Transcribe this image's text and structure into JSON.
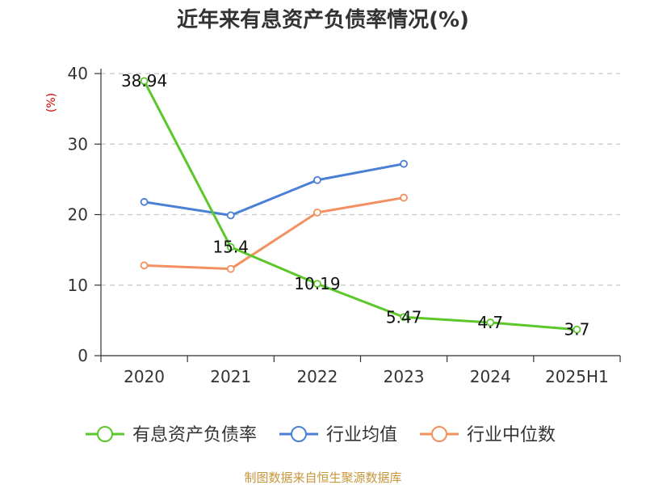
{
  "chart_data": {
    "type": "line",
    "title": "近年来有息资产负债率情况(%)",
    "ylabel": "(%)",
    "xlabel": "",
    "categories": [
      "2020",
      "2021",
      "2022",
      "2023",
      "2024",
      "2025H1"
    ],
    "ylim": [
      0,
      40
    ],
    "yticks": [
      0,
      10,
      20,
      30,
      40
    ],
    "grid": true,
    "legend_position": "bottom",
    "series": [
      {
        "name": "有息资产负债率",
        "color": "#5cc72a",
        "values": [
          38.94,
          15.4,
          10.19,
          5.47,
          4.7,
          3.7
        ],
        "labels": [
          "38.94",
          "15.4",
          "10.19",
          "5.47",
          "4.7",
          "3.7"
        ]
      },
      {
        "name": "行业均值",
        "color": "#4a7fd6",
        "values": [
          21.8,
          19.9,
          24.9,
          27.2,
          null,
          null
        ]
      },
      {
        "name": "行业中位数",
        "color": "#f39060",
        "values": [
          12.8,
          12.3,
          20.3,
          22.4,
          null,
          null
        ]
      }
    ]
  },
  "footer": {
    "source": "制图数据来自恒生聚源数据库"
  }
}
